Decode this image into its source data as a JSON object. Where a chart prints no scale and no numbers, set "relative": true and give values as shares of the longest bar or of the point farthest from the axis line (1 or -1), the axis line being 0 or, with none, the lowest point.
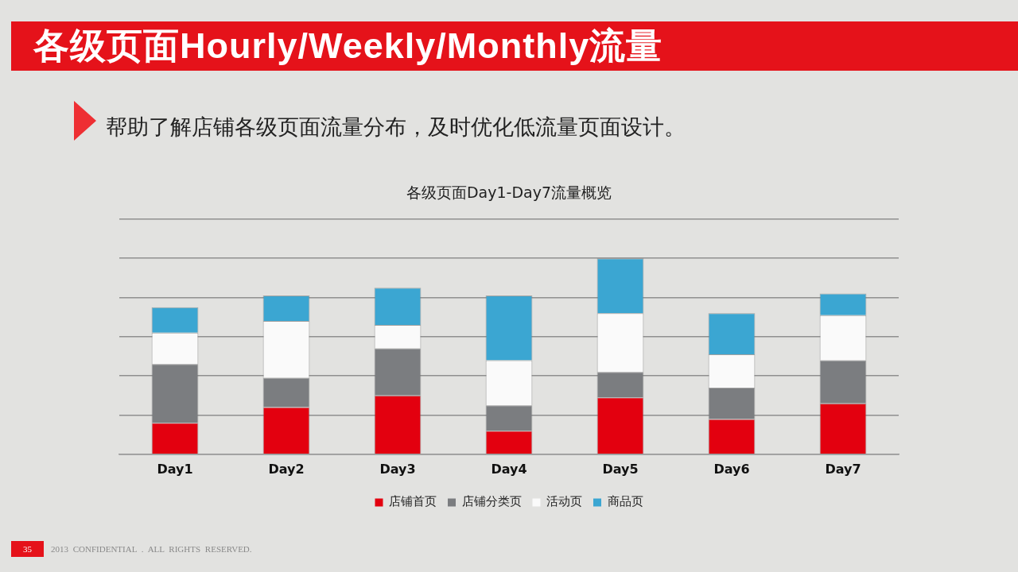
{
  "chart_data": {
    "type": "bar",
    "title": "各级页面Hourly/Weekly/Monthly流量",
    "subtitle": "各级页面Day1-Day7流量概览",
    "annotations": [
      "帮助了解店铺各级页面流量分布，及时优化低流量页面设计。",
      "35",
      "2013 CONFIDENTIAL . ALL RIGHTS RESERVED."
    ],
    "categories": [
      "Day1",
      "Day2",
      "Day3",
      "Day4",
      "Day5",
      "Day6",
      "Day7"
    ],
    "series": [
      {
        "name": "店铺首页",
        "color": "#e3000f",
        "values": [
          0.16,
          0.24,
          0.3,
          0.12,
          0.29,
          0.18,
          0.26
        ]
      },
      {
        "name": "店铺分类页",
        "color": "#7b7d80",
        "values": [
          0.3,
          0.15,
          0.24,
          0.13,
          0.13,
          0.16,
          0.22
        ]
      },
      {
        "name": "活动页",
        "color": "#fafafa",
        "values": [
          0.16,
          0.29,
          0.12,
          0.23,
          0.3,
          0.17,
          0.23
        ]
      },
      {
        "name": "商品页",
        "color": "#3ba6d2",
        "values": [
          0.13,
          0.13,
          0.19,
          0.33,
          0.28,
          0.21,
          0.11
        ]
      }
    ],
    "stacked": true,
    "relative": true,
    "grid": "y",
    "legend": "bottom"
  }
}
